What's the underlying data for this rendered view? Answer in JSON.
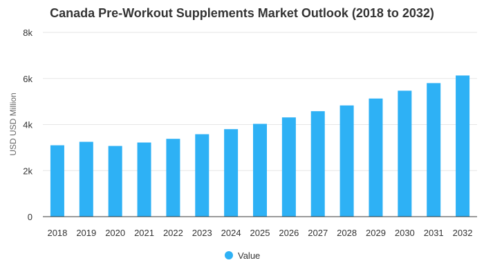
{
  "chart_data": {
    "type": "bar",
    "title": "Canada Pre-Workout Supplements Market Outlook (2018 to 2032)",
    "xlabel": "",
    "ylabel": "USD USD Million",
    "categories": [
      "2018",
      "2019",
      "2020",
      "2021",
      "2022",
      "2023",
      "2024",
      "2025",
      "2026",
      "2027",
      "2028",
      "2029",
      "2030",
      "2031",
      "2032"
    ],
    "series": [
      {
        "name": "Value",
        "color": "#2EB1F5",
        "values": [
          3100,
          3250,
          3070,
          3220,
          3380,
          3580,
          3800,
          4030,
          4310,
          4580,
          4830,
          5130,
          5470,
          5800,
          6130
        ]
      }
    ],
    "ylim": [
      0,
      8000
    ],
    "yticks": [
      0,
      2000,
      4000,
      6000,
      8000
    ],
    "ytick_labels": [
      "0",
      "2k",
      "4k",
      "6k",
      "8k"
    ],
    "grid": true,
    "legend_position": "bottom-center"
  }
}
